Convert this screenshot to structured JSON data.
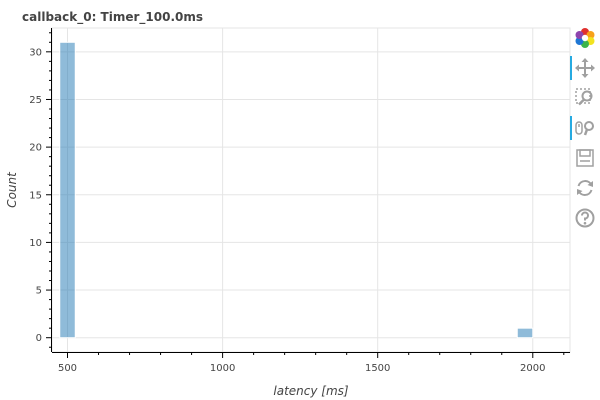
{
  "chart_data": {
    "type": "bar",
    "title": "callback_0: Timer_100.0ms",
    "xlabel": "latency [ms]",
    "ylabel": "Count",
    "xlim": [
      450,
      2120
    ],
    "ylim": [
      -1.5,
      32.5
    ],
    "x_ticks": [
      500,
      1000,
      1500,
      2000
    ],
    "y_ticks": [
      0,
      5,
      10,
      15,
      20,
      25,
      30
    ],
    "bin_width": 50,
    "bars": [
      {
        "x": 500,
        "value": 31
      },
      {
        "x": 1975,
        "value": 1
      }
    ],
    "bar_color": "#1f77b4",
    "grid": true
  },
  "toolbar": {
    "tools": [
      {
        "name": "bokeh-logo-icon",
        "active": false
      },
      {
        "name": "pan-icon",
        "active": true
      },
      {
        "name": "box-zoom-icon",
        "active": false
      },
      {
        "name": "wheel-zoom-icon",
        "active": true
      },
      {
        "name": "save-icon",
        "active": false
      },
      {
        "name": "reset-icon",
        "active": false
      },
      {
        "name": "help-icon",
        "active": false
      }
    ]
  }
}
